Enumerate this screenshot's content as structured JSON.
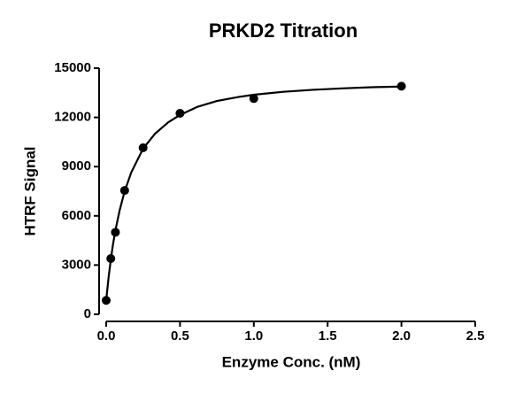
{
  "chart_data": {
    "type": "scatter",
    "title": "PRKD2 Titration",
    "x_label": "Enzyme Conc. (nM)",
    "y_label": "HTRF Signal",
    "xlim": [
      0,
      2.5
    ],
    "xticks": [
      {
        "value": 0,
        "label": "0.0"
      },
      {
        "value": 0.5,
        "label": "0.5"
      },
      {
        "value": 1,
        "label": "1.0"
      },
      {
        "value": 1.5,
        "label": "1.5"
      },
      {
        "value": 2,
        "label": "2.0"
      },
      {
        "value": 2.5,
        "label": "2.5"
      }
    ],
    "ylim": [
      0,
      15000
    ],
    "yticks": [
      0,
      3000,
      6000,
      9000,
      12000,
      15000
    ],
    "grid": false,
    "series": [
      {
        "mode": "markers",
        "color": "#000000",
        "x": [
          0,
          0.03125,
          0.0625,
          0.125,
          0.25,
          0.5,
          1,
          2
        ],
        "values": [
          850,
          3400,
          5000,
          7550,
          10150,
          12250,
          13150,
          13900
        ]
      },
      {
        "mode": "line",
        "color": "#000000",
        "x": [
          0,
          0.015,
          0.03,
          0.045,
          0.06,
          0.09,
          0.125,
          0.17,
          0.25,
          0.33,
          0.42,
          0.5,
          0.62,
          0.75,
          0.9,
          1,
          1.2,
          1.4,
          1.6,
          1.8,
          2
        ],
        "values": [
          850,
          2150,
          3250,
          4200,
          5000,
          6300,
          7500,
          8650,
          10100,
          11000,
          11700,
          12150,
          12650,
          13000,
          13250,
          13380,
          13560,
          13680,
          13770,
          13840,
          13880
        ]
      }
    ]
  }
}
